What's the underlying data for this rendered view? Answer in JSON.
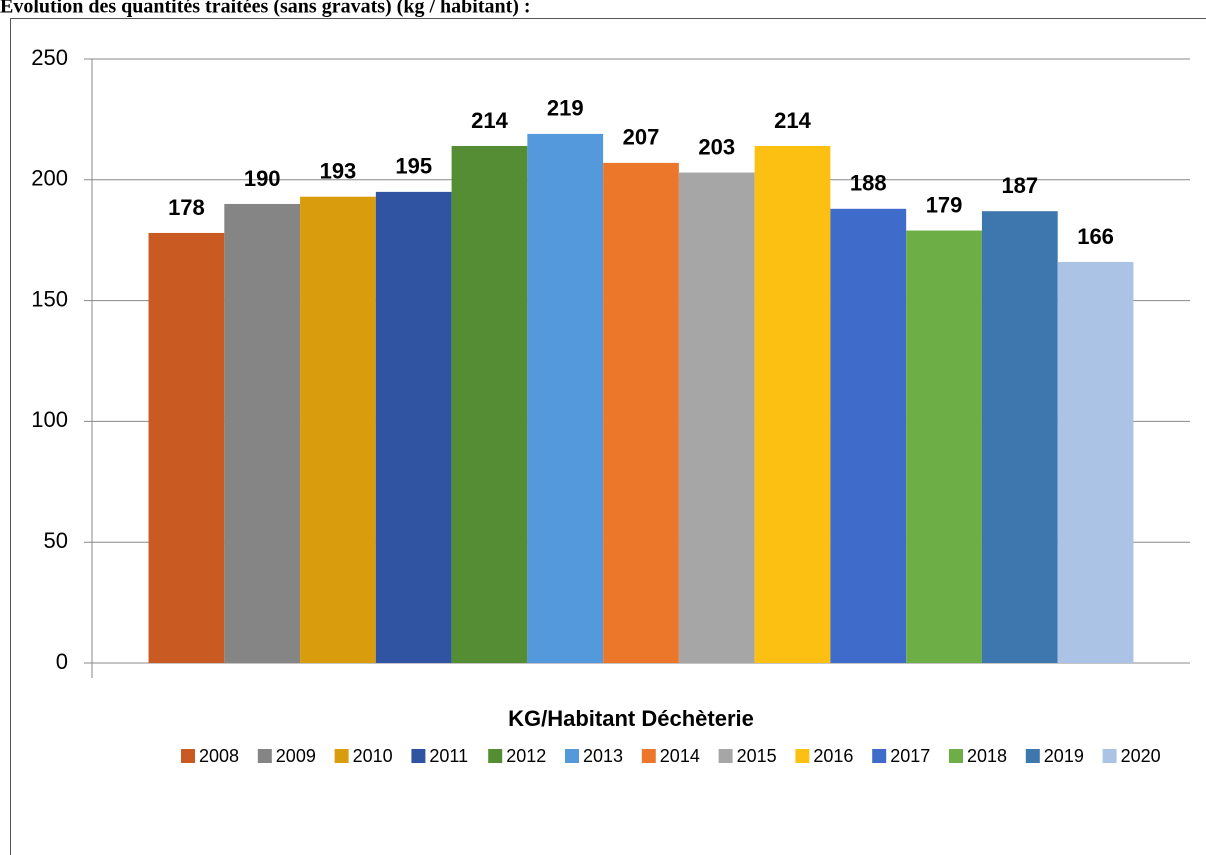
{
  "chart_data": {
    "type": "bar",
    "title": "Évolution des quantités traitées (sans gravats) (kg / habitant) :",
    "categories": [
      "KG/Habitant Déchèterie"
    ],
    "series": [
      {
        "name": "2008",
        "color": "#c95b22",
        "values": [
          178
        ]
      },
      {
        "name": "2009",
        "color": "#858585",
        "values": [
          190
        ]
      },
      {
        "name": "2010",
        "color": "#d89c0c",
        "values": [
          193
        ]
      },
      {
        "name": "2011",
        "color": "#3053a2",
        "values": [
          195
        ]
      },
      {
        "name": "2012",
        "color": "#548d33",
        "values": [
          214
        ]
      },
      {
        "name": "2013",
        "color": "#5399dc",
        "values": [
          219
        ]
      },
      {
        "name": "2014",
        "color": "#ec772b",
        "values": [
          207
        ]
      },
      {
        "name": "2015",
        "color": "#a6a6a6",
        "values": [
          203
        ]
      },
      {
        "name": "2016",
        "color": "#fcc013",
        "values": [
          214
        ]
      },
      {
        "name": "2017",
        "color": "#3f6bca",
        "values": [
          188
        ]
      },
      {
        "name": "2018",
        "color": "#6dae47",
        "values": [
          179
        ]
      },
      {
        "name": "2019",
        "color": "#3d77ad",
        "values": [
          187
        ]
      },
      {
        "name": "2020",
        "color": "#abc4e6",
        "values": [
          166
        ]
      }
    ],
    "ylim": [
      0,
      250
    ],
    "yticks": [
      0,
      50,
      100,
      150,
      200,
      250
    ],
    "grid": true
  }
}
